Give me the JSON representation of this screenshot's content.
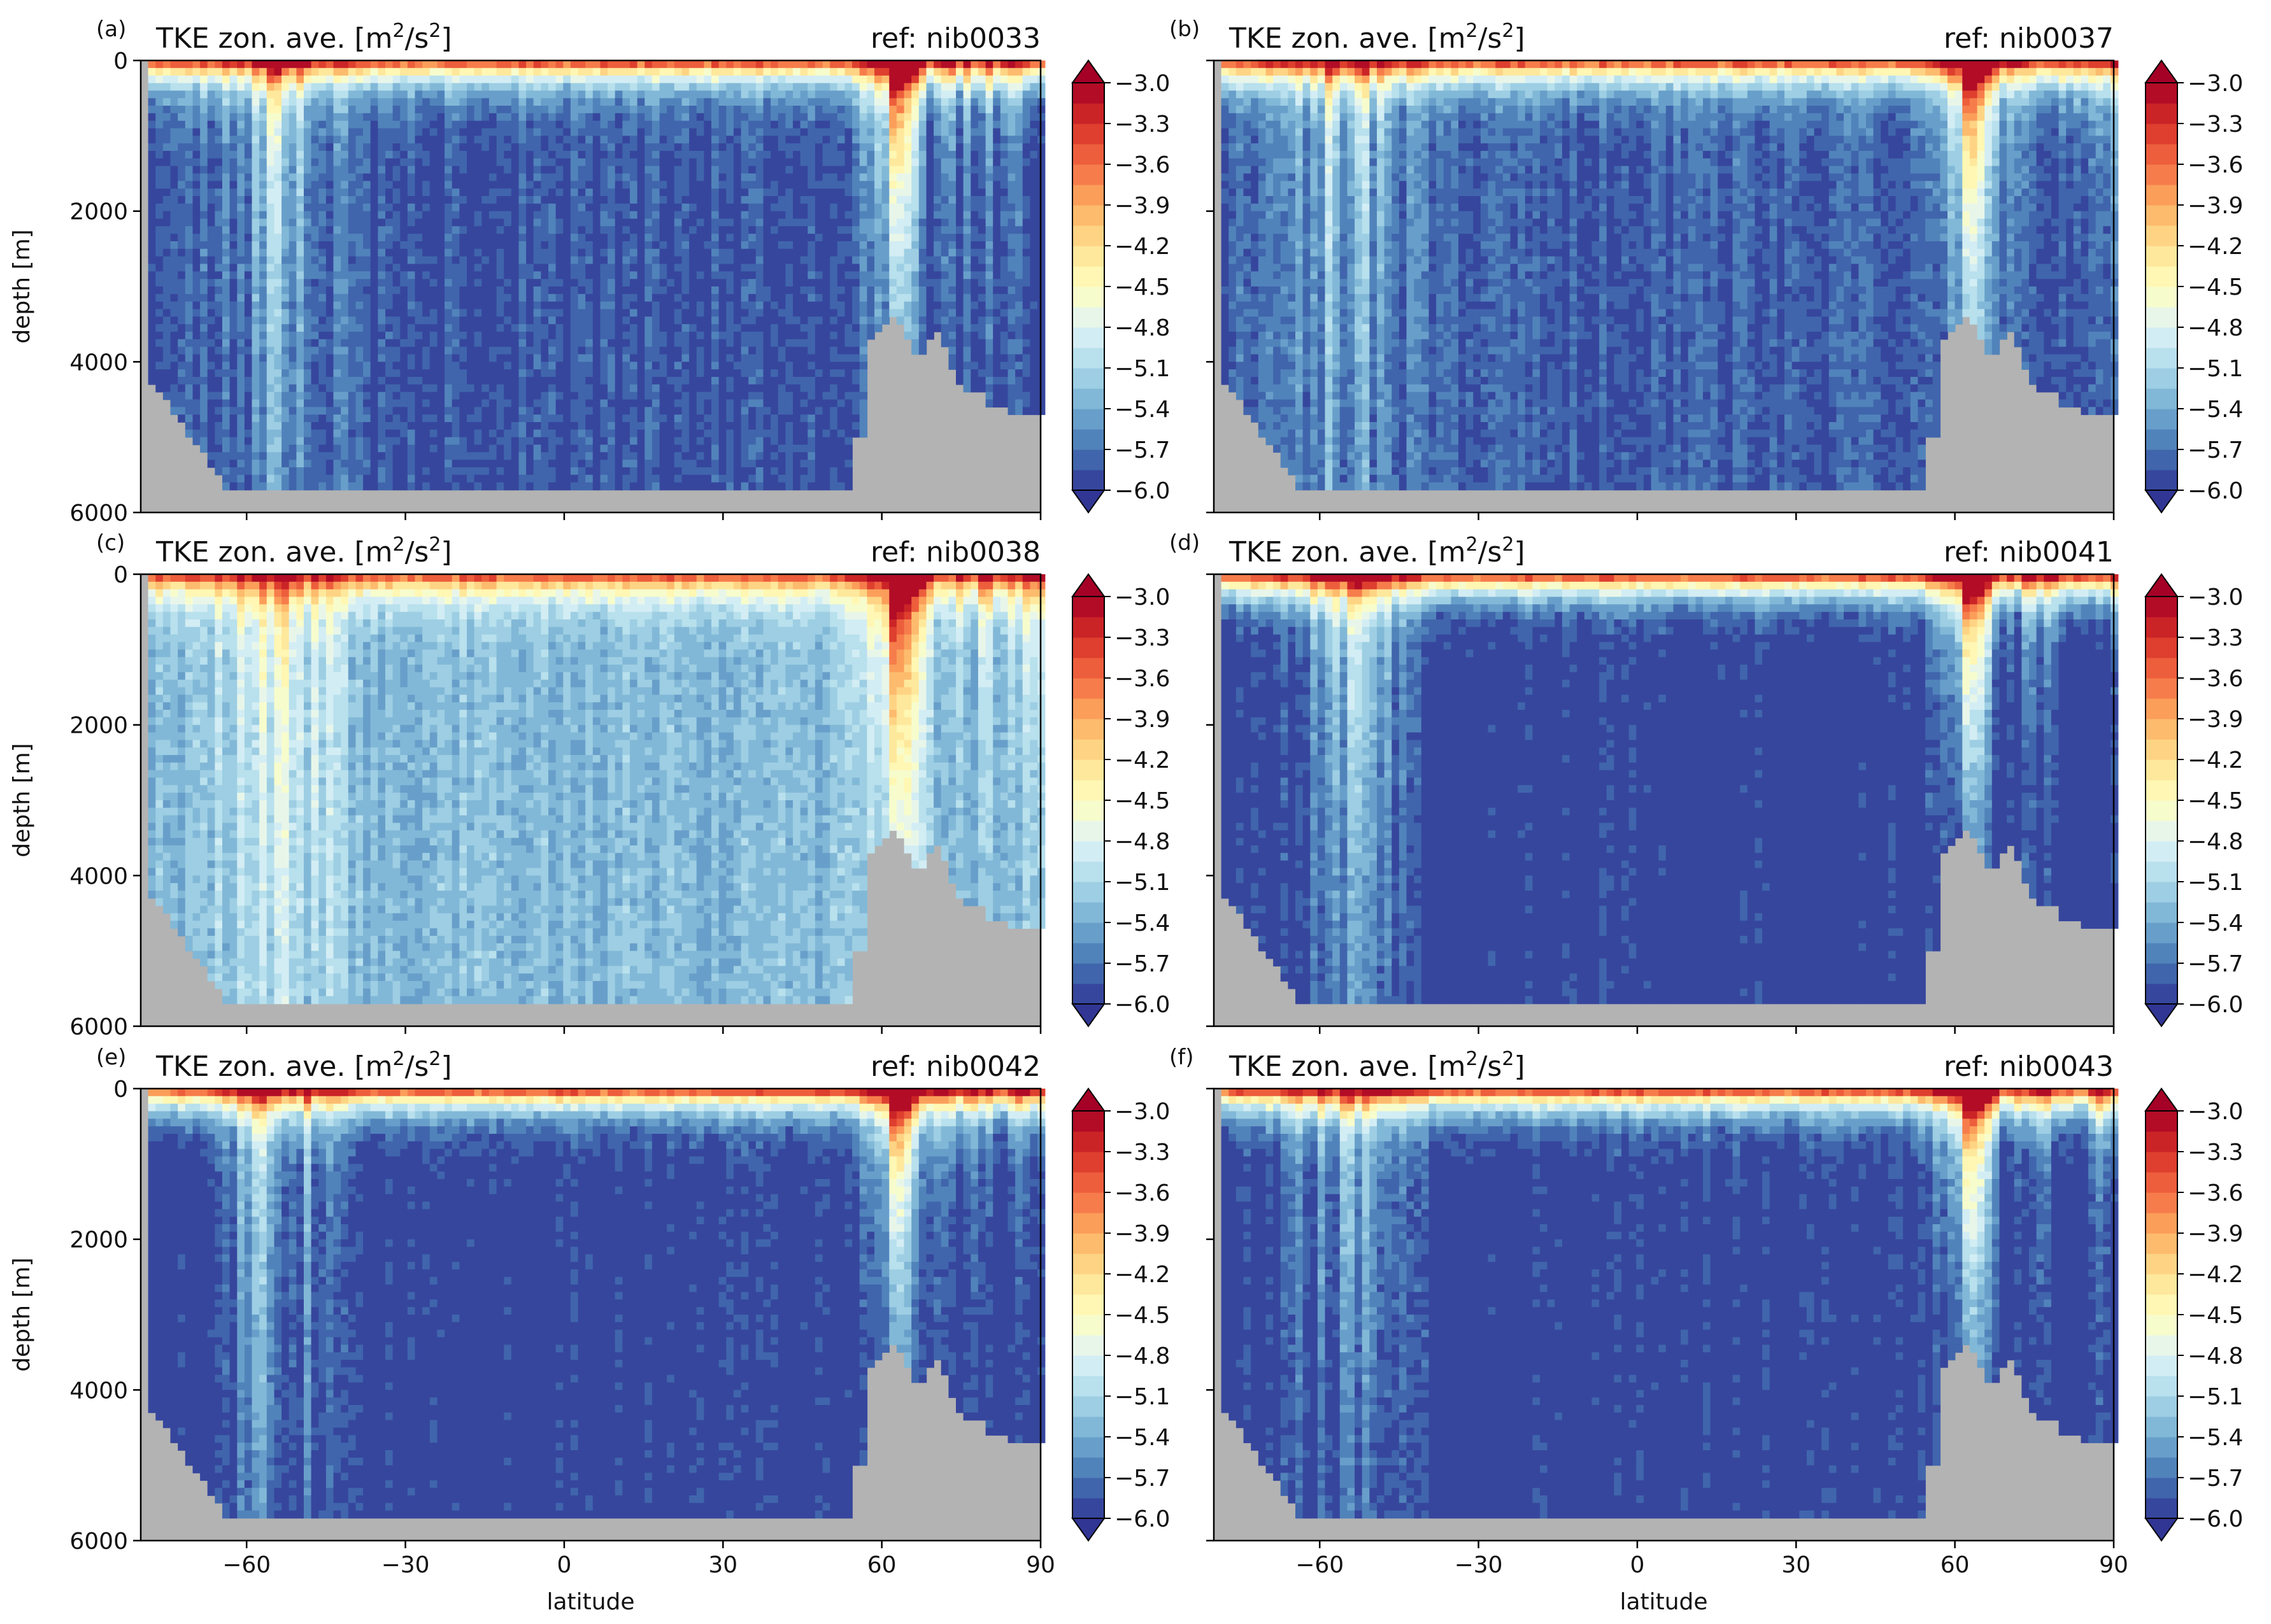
{
  "chart_data": [
    {
      "type": "heatmap",
      "letter": "(a)",
      "title": "TKE zon. ave. [m²/s²]",
      "title_main": "TKE zon. ave. [m",
      "title_sup1": "2",
      "title_mid": "/s",
      "title_sup2": "2",
      "title_end": "]",
      "ref": "ref: nib0033",
      "ylabel": "depth [m]",
      "xlabel": "",
      "xlim": [
        -80,
        90
      ],
      "ylim": [
        6000,
        0
      ],
      "xticks": [
        -60,
        -30,
        0,
        30,
        60,
        90
      ],
      "xtick_labels": [],
      "yticks": [
        0,
        2000,
        4000,
        6000
      ],
      "ytick_labels": [
        "0",
        "2000",
        "4000",
        "6000"
      ],
      "background_level": -5.85,
      "colorbar": {
        "vmin": -6.0,
        "vmax": -3.0,
        "ticks": [
          "−3.0",
          "−3.3",
          "−3.6",
          "−3.9",
          "−4.2",
          "−4.5",
          "−4.8",
          "−5.1",
          "−5.4",
          "−5.7",
          "−6.0"
        ],
        "extend": "both"
      }
    },
    {
      "type": "heatmap",
      "letter": "(b)",
      "title": "TKE zon. ave. [m²/s²]",
      "title_main": "TKE zon. ave. [m",
      "title_sup1": "2",
      "title_mid": "/s",
      "title_sup2": "2",
      "title_end": "]",
      "ref": "ref: nib0037",
      "ylabel": "",
      "xlabel": "",
      "xlim": [
        -80,
        90
      ],
      "ylim": [
        6000,
        0
      ],
      "xticks": [
        -60,
        -30,
        0,
        30,
        60,
        90
      ],
      "xtick_labels": [],
      "yticks": [
        0,
        2000,
        4000,
        6000
      ],
      "ytick_labels": [],
      "background_level": -5.8,
      "colorbar": {
        "vmin": -6.0,
        "vmax": -3.0,
        "ticks": [
          "−3.0",
          "−3.3",
          "−3.6",
          "−3.9",
          "−4.2",
          "−4.5",
          "−4.8",
          "−5.1",
          "−5.4",
          "−5.7",
          "−6.0"
        ],
        "extend": "both"
      }
    },
    {
      "type": "heatmap",
      "letter": "(c)",
      "title": "TKE zon. ave. [m²/s²]",
      "title_main": "TKE zon. ave. [m",
      "title_sup1": "2",
      "title_mid": "/s",
      "title_sup2": "2",
      "title_end": "]",
      "ref": "ref: nib0038",
      "ylabel": "depth [m]",
      "xlabel": "",
      "xlim": [
        -80,
        90
      ],
      "ylim": [
        6000,
        0
      ],
      "xticks": [
        -60,
        -30,
        0,
        30,
        60,
        90
      ],
      "xtick_labels": [],
      "yticks": [
        0,
        2000,
        4000,
        6000
      ],
      "ytick_labels": [
        "0",
        "2000",
        "4000",
        "6000"
      ],
      "background_level": -5.3,
      "colorbar": {
        "vmin": -6.0,
        "vmax": -3.0,
        "ticks": [
          "−3.0",
          "−3.3",
          "−3.6",
          "−3.9",
          "−4.2",
          "−4.5",
          "−4.8",
          "−5.1",
          "−5.4",
          "−5.7",
          "−6.0"
        ],
        "extend": "both"
      }
    },
    {
      "type": "heatmap",
      "letter": "(d)",
      "title": "TKE zon. ave. [m²/s²]",
      "title_main": "TKE zon. ave. [m",
      "title_sup1": "2",
      "title_mid": "/s",
      "title_sup2": "2",
      "title_end": "]",
      "ref": "ref: nib0041",
      "ylabel": "",
      "xlabel": "",
      "xlim": [
        -80,
        90
      ],
      "ylim": [
        6000,
        0
      ],
      "xticks": [
        -60,
        -30,
        0,
        30,
        60,
        90
      ],
      "xtick_labels": [],
      "yticks": [
        0,
        2000,
        4000,
        6000
      ],
      "ytick_labels": [],
      "background_level": -6.0,
      "colorbar": {
        "vmin": -6.0,
        "vmax": -3.0,
        "ticks": [
          "−3.0",
          "−3.3",
          "−3.6",
          "−3.9",
          "−4.2",
          "−4.5",
          "−4.8",
          "−5.1",
          "−5.4",
          "−5.7",
          "−6.0"
        ],
        "extend": "both"
      }
    },
    {
      "type": "heatmap",
      "letter": "(e)",
      "title": "TKE zon. ave. [m²/s²]",
      "title_main": "TKE zon. ave. [m",
      "title_sup1": "2",
      "title_mid": "/s",
      "title_sup2": "2",
      "title_end": "]",
      "ref": "ref: nib0042",
      "ylabel": "depth [m]",
      "xlabel": "latitude",
      "xlim": [
        -80,
        90
      ],
      "ylim": [
        6000,
        0
      ],
      "xticks": [
        -60,
        -30,
        0,
        30,
        60,
        90
      ],
      "xtick_labels": [
        "−60",
        "−30",
        "0",
        "30",
        "60",
        "90"
      ],
      "yticks": [
        0,
        2000,
        4000,
        6000
      ],
      "ytick_labels": [
        "0",
        "2000",
        "4000",
        "6000"
      ],
      "background_level": -6.0,
      "colorbar": {
        "vmin": -6.0,
        "vmax": -3.0,
        "ticks": [
          "−3.0",
          "−3.3",
          "−3.6",
          "−3.9",
          "−4.2",
          "−4.5",
          "−4.8",
          "−5.1",
          "−5.4",
          "−5.7",
          "−6.0"
        ],
        "extend": "both"
      }
    },
    {
      "type": "heatmap",
      "letter": "(f)",
      "title": "TKE zon. ave. [m²/s²]",
      "title_main": "TKE zon. ave. [m",
      "title_sup1": "2",
      "title_mid": "/s",
      "title_sup2": "2",
      "title_end": "]",
      "ref": "ref: nib0043",
      "ylabel": "",
      "xlabel": "latitude",
      "xlim": [
        -80,
        90
      ],
      "ylim": [
        6000,
        0
      ],
      "xticks": [
        -60,
        -30,
        0,
        30,
        60,
        90
      ],
      "xtick_labels": [
        "−60",
        "−30",
        "0",
        "30",
        "60",
        "90"
      ],
      "yticks": [
        0,
        2000,
        4000,
        6000
      ],
      "ytick_labels": [],
      "background_level": -6.0,
      "colorbar": {
        "vmin": -6.0,
        "vmax": -3.0,
        "ticks": [
          "−3.0",
          "−3.3",
          "−3.6",
          "−3.9",
          "−4.2",
          "−4.5",
          "−4.8",
          "−5.1",
          "−5.4",
          "−5.7",
          "−6.0"
        ],
        "extend": "both"
      }
    }
  ],
  "colormap": [
    "#313695",
    "#4575b4",
    "#74add1",
    "#abd9e9",
    "#e0f3f8",
    "#ffffbf",
    "#fee090",
    "#fdae61",
    "#f46d43",
    "#d73027",
    "#a50026"
  ],
  "land_color": "#b3b3b3"
}
